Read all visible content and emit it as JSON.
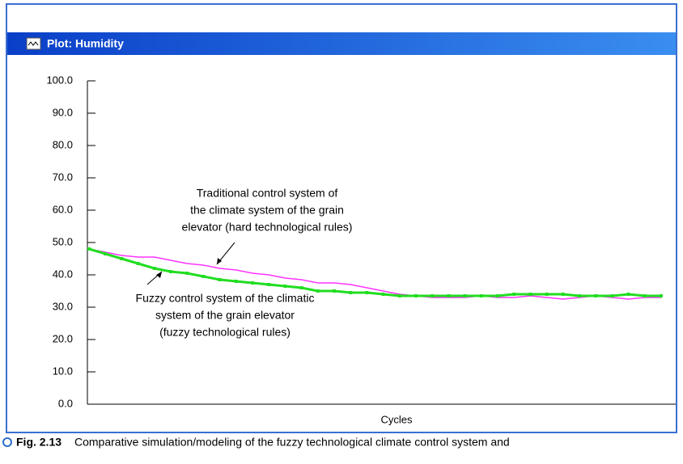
{
  "window_title": "Plot: Humidity",
  "caption": {
    "label": "Fig. 2.13",
    "text": "Comparative simulation/modeling of the fuzzy technological climate control system and"
  },
  "chart_data": {
    "type": "line",
    "xlabel": "Cycles",
    "ylim": [
      0,
      100
    ],
    "yticks": [
      {
        "value": 0,
        "label": "0.0"
      },
      {
        "value": 10,
        "label": "10.0"
      },
      {
        "value": 20,
        "label": "20.0"
      },
      {
        "value": 30,
        "label": "30.0"
      },
      {
        "value": 40,
        "label": "40.0"
      },
      {
        "value": 50,
        "label": "50.0"
      },
      {
        "value": 60,
        "label": "60.0"
      },
      {
        "value": 70,
        "label": "70.0"
      },
      {
        "value": 80,
        "label": "80.0"
      },
      {
        "value": 90,
        "label": "90.0"
      },
      {
        "value": 100,
        "label": "100.0"
      }
    ],
    "series": [
      {
        "color": "#ff33ff",
        "values": [
          48,
          47,
          46,
          45.5,
          45.5,
          44.5,
          43.5,
          43,
          42,
          41.5,
          40.5,
          40,
          39,
          38.5,
          37.5,
          37.5,
          37,
          36,
          35,
          34,
          33.5,
          33,
          33,
          33,
          33.5,
          33,
          33,
          33.5,
          33,
          32.5,
          33,
          33.5,
          33,
          32.5,
          33,
          33
        ]
      },
      {
        "color": "#22dd22",
        "values": [
          48,
          46.5,
          45,
          43.5,
          42,
          41,
          40.5,
          39.5,
          38.5,
          38,
          37.5,
          37,
          36.5,
          36,
          35,
          35,
          34.5,
          34.5,
          34,
          33.5,
          33.5,
          33.5,
          33.5,
          33.5,
          33.5,
          33.5,
          34,
          34,
          34,
          34,
          33.5,
          33.5,
          33.5,
          34,
          33.5,
          33.5
        ]
      }
    ],
    "annotations": [
      {
        "lines": [
          "Traditional control system of",
          "the climate system of the grain",
          "elevator (hard technological rules)"
        ]
      },
      {
        "lines": [
          "Fuzzy control system of the climatic",
          "system of the grain elevator",
          "(fuzzy technological rules)"
        ]
      }
    ]
  }
}
